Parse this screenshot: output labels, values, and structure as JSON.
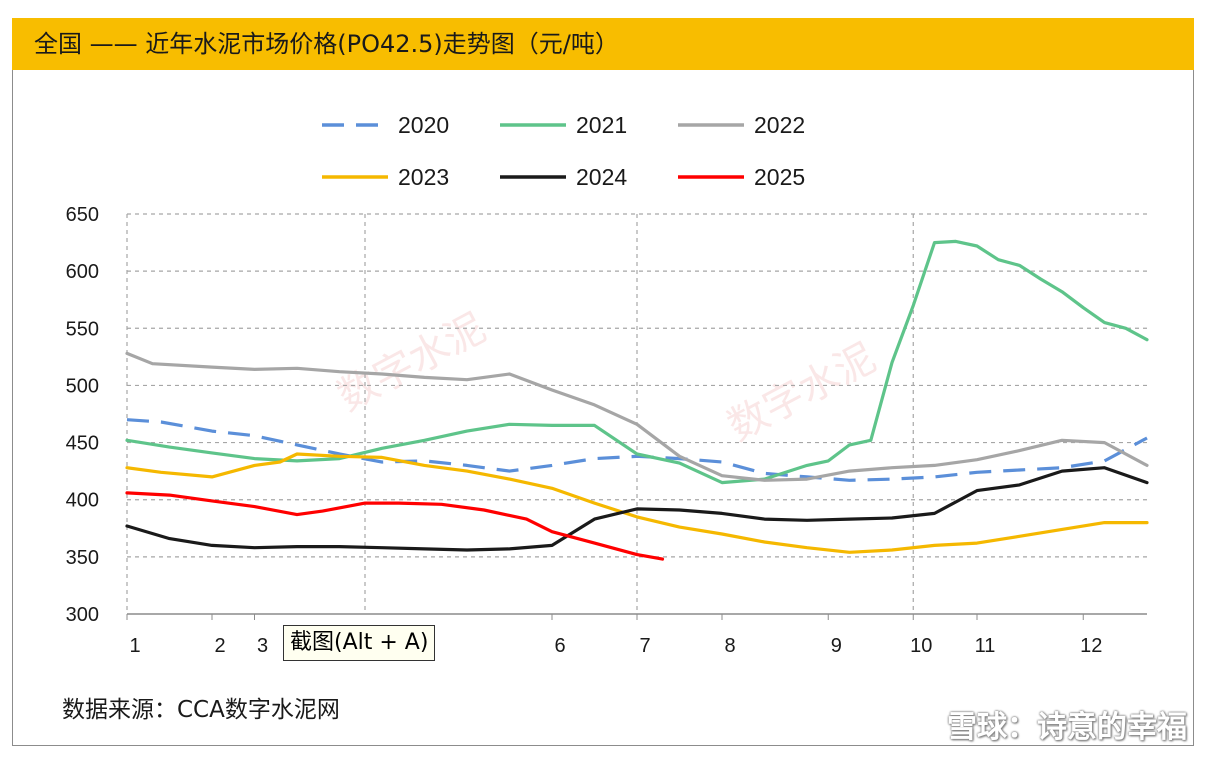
{
  "title": "全国 —— 近年水泥市场价格(PO42.5)走势图（元/吨）",
  "source": "数据来源：CCA数字水泥网",
  "tooltip": "截图(Alt + A)",
  "watermark_background": "数字水泥",
  "watermark_site": "雪球：诗意的幸福",
  "colors": {
    "title_bar": "#f8bd00",
    "grid": "#a6a6a6"
  },
  "chart_data": {
    "type": "line",
    "title": "全国 —— 近年水泥市场价格(PO42.5)走势图（元/吨）",
    "xlabel": "",
    "ylabel": "",
    "ylim": [
      300,
      650
    ],
    "xlim": [
      1,
      13
    ],
    "yticks": [
      300,
      350,
      400,
      450,
      500,
      550,
      600,
      650
    ],
    "xticks": [
      {
        "v": 1,
        "label": "1"
      },
      {
        "v": 2,
        "label": "2"
      },
      {
        "v": 2.5,
        "label": "3"
      },
      {
        "v": 6,
        "label": "6"
      },
      {
        "v": 7,
        "label": "7"
      },
      {
        "v": 8,
        "label": "8"
      },
      {
        "v": 9.25,
        "label": "9"
      },
      {
        "v": 10.25,
        "label": "10"
      },
      {
        "v": 11,
        "label": "11"
      },
      {
        "v": 12.25,
        "label": "12"
      }
    ],
    "vlines": [
      3.8,
      7,
      10.25
    ],
    "grid": true,
    "legend_position": "top",
    "series": [
      {
        "name": "2020",
        "color": "#5b8fd9",
        "dash": true,
        "x": [
          1,
          1.4,
          2,
          2.5,
          3,
          3.5,
          4,
          4.5,
          5,
          5.5,
          6,
          6.5,
          7,
          7.5,
          8,
          8.5,
          9,
          9.5,
          10,
          10.5,
          11,
          11.5,
          12,
          12.5,
          13
        ],
        "y": [
          470,
          468,
          460,
          456,
          448,
          440,
          433,
          434,
          430,
          425,
          430,
          436,
          438,
          436,
          433,
          423,
          420,
          417,
          418,
          420,
          424,
          426,
          428,
          434,
          454
        ]
      },
      {
        "name": "2021",
        "color": "#5ec48a",
        "x": [
          1,
          1.5,
          2,
          2.5,
          3,
          3.5,
          4,
          4.5,
          5,
          5.5,
          6,
          6.5,
          7,
          7.5,
          8,
          8.5,
          9,
          9.25,
          9.5,
          9.75,
          10,
          10.25,
          10.5,
          10.75,
          11,
          11.25,
          11.5,
          11.75,
          12,
          12.25,
          12.5,
          12.75,
          13
        ],
        "y": [
          452,
          446,
          441,
          436,
          434,
          436,
          445,
          452,
          460,
          466,
          465,
          465,
          440,
          432,
          415,
          418,
          430,
          434,
          448,
          452,
          520,
          570,
          625,
          626,
          622,
          610,
          605,
          593,
          582,
          568,
          555,
          550,
          540
        ]
      },
      {
        "name": "2022",
        "color": "#a6a6a6",
        "x": [
          1,
          1.3,
          2,
          2.5,
          3,
          3.5,
          4,
          4.5,
          5,
          5.5,
          6,
          6.5,
          7,
          7.5,
          8,
          8.5,
          9,
          9.5,
          10,
          10.5,
          11,
          11.5,
          12,
          12.5,
          13
        ],
        "y": [
          528,
          519,
          516,
          514,
          515,
          512,
          510,
          507,
          505,
          510,
          496,
          483,
          466,
          438,
          421,
          417,
          418,
          425,
          428,
          430,
          435,
          443,
          452,
          450,
          430
        ]
      },
      {
        "name": "2023",
        "color": "#f5b800",
        "x": [
          1,
          1.4,
          2,
          2.5,
          2.8,
          3,
          3.5,
          4,
          4.5,
          5,
          5.5,
          6,
          6.5,
          7,
          7.5,
          8,
          8.5,
          9,
          9.5,
          10,
          10.5,
          11,
          11.5,
          12,
          12.5,
          13
        ],
        "y": [
          428,
          424,
          420,
          430,
          433,
          440,
          438,
          437,
          430,
          425,
          418,
          410,
          397,
          385,
          376,
          370,
          363,
          358,
          354,
          356,
          360,
          362,
          368,
          374,
          380,
          380
        ]
      },
      {
        "name": "2024",
        "color": "#1a1a1a",
        "x": [
          1,
          1.5,
          2,
          2.5,
          3,
          3.5,
          4,
          4.5,
          5,
          5.5,
          6,
          6.5,
          7,
          7.5,
          8,
          8.5,
          9,
          9.5,
          10,
          10.5,
          11,
          11.5,
          12,
          12.5,
          13
        ],
        "y": [
          377,
          366,
          360,
          358,
          359,
          359,
          358,
          357,
          356,
          357,
          360,
          383,
          392,
          391,
          388,
          383,
          382,
          383,
          384,
          388,
          408,
          413,
          425,
          428,
          415
        ]
      },
      {
        "name": "2025",
        "color": "#ff0000",
        "x": [
          1,
          1.5,
          2,
          2.5,
          3,
          3.3,
          3.8,
          4.2,
          4.7,
          5.2,
          5.7,
          6,
          6.5,
          7,
          7.3
        ],
        "y": [
          406,
          404,
          399,
          394,
          387,
          390,
          397,
          397,
          396,
          391,
          383,
          372,
          362,
          352,
          348
        ]
      }
    ]
  }
}
